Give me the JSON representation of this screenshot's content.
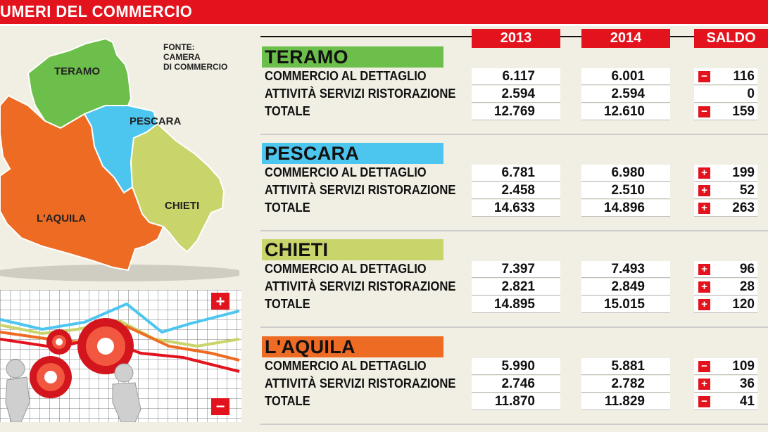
{
  "header": {
    "title": "UMERI DEL COMMERCIO"
  },
  "columns": {
    "y2013": "2013",
    "y2014": "2014",
    "saldo": "SALDO"
  },
  "source": {
    "line1": "FONTE:",
    "line2": "CAMERA",
    "line3": "DI COMMERCIO"
  },
  "map_labels": {
    "teramo": "TERAMO",
    "pescara": "PESCARA",
    "chieti": "CHIETI",
    "aquila": "L'AQUILA"
  },
  "colors": {
    "accent": "#e3131e",
    "teramo": "#6dbf4b",
    "pescara": "#4cc6ef",
    "chieti": "#c9d46a",
    "aquila": "#ee6b23"
  },
  "sections": [
    {
      "name": "TERAMO",
      "rows": [
        {
          "label": "COMMERCIO AL DETTAGLIO",
          "v2013": "6.117",
          "v2014": "6.001",
          "sign": "−",
          "saldo": "116"
        },
        {
          "label": "ATTIVITÀ SERVIZI RISTORAZIONE",
          "v2013": "2.594",
          "v2014": "2.594",
          "sign": "",
          "saldo": "0"
        },
        {
          "label": "TOTALE",
          "v2013": "12.769",
          "v2014": "12.610",
          "sign": "−",
          "saldo": "159"
        }
      ]
    },
    {
      "name": "PESCARA",
      "rows": [
        {
          "label": "COMMERCIO AL DETTAGLIO",
          "v2013": "6.781",
          "v2014": "6.980",
          "sign": "+",
          "saldo": "199"
        },
        {
          "label": "ATTIVITÀ SERVIZI RISTORAZIONE",
          "v2013": "2.458",
          "v2014": "2.510",
          "sign": "+",
          "saldo": "52"
        },
        {
          "label": "TOTALE",
          "v2013": "14.633",
          "v2014": "14.896",
          "sign": "+",
          "saldo": "263"
        }
      ]
    },
    {
      "name": "CHIETI",
      "rows": [
        {
          "label": "COMMERCIO AL DETTAGLIO",
          "v2013": "7.397",
          "v2014": "7.493",
          "sign": "+",
          "saldo": "96"
        },
        {
          "label": "ATTIVITÀ SERVIZI RISTORAZIONE",
          "v2013": "2.821",
          "v2014": "2.849",
          "sign": "+",
          "saldo": "28"
        },
        {
          "label": "TOTALE",
          "v2013": "14.895",
          "v2014": "15.015",
          "sign": "+",
          "saldo": "120"
        }
      ]
    },
    {
      "name": "L'AQUILA",
      "rows": [
        {
          "label": "COMMERCIO AL DETTAGLIO",
          "v2013": "5.990",
          "v2014": "5.881",
          "sign": "−",
          "saldo": "109"
        },
        {
          "label": "ATTIVITÀ SERVIZI RISTORAZIONE",
          "v2013": "2.746",
          "v2014": "2.782",
          "sign": "+",
          "saldo": "36"
        },
        {
          "label": "TOTALE",
          "v2013": "11.870",
          "v2014": "11.829",
          "sign": "−",
          "saldo": "41"
        }
      ]
    }
  ],
  "illustration": {
    "plus": "+",
    "minus": "−"
  }
}
